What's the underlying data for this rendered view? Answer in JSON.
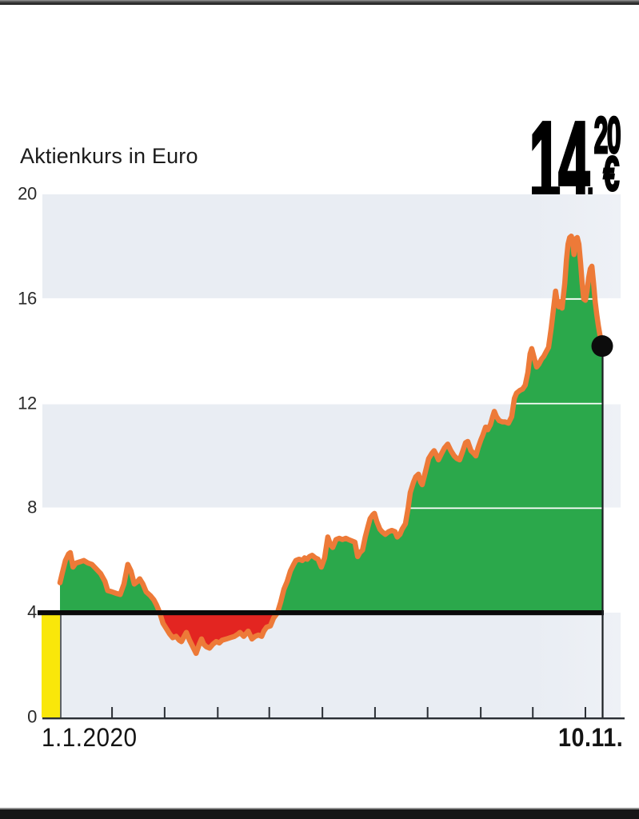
{
  "header": {
    "title": "Aktienkurs in Euro"
  },
  "price_tag": {
    "value": "14,20 €",
    "integer": "14",
    "comma": ",",
    "fraction": "20",
    "currency": "€"
  },
  "chart_data": {
    "type": "area",
    "title": "Aktienkurs in Euro",
    "ylabel": "Euro",
    "x_start_label": "1.1.2020",
    "x_end_label": "10.11.",
    "ylim": [
      0,
      20
    ],
    "yticks": [
      20,
      16,
      12,
      8,
      4,
      0
    ],
    "baseline": 4,
    "last_value": 14.2,
    "grid": "alternating bands at 0-4, 8-12, 16-20 plus white lines at 8/12/16, heavy black line at 4",
    "legend_position": "none",
    "bands": [
      [
        16,
        20
      ],
      [
        8,
        12
      ],
      [
        0,
        4
      ]
    ],
    "xtick_positions": [
      0.096,
      0.193,
      0.291,
      0.386,
      0.484,
      0.581,
      0.678,
      0.776,
      0.872,
      0.969
    ],
    "colors": {
      "area_positive": "#2ba84b",
      "area_negative": "#e32521",
      "line": "#ed7a38",
      "baseline_line": "#0a0a0a",
      "band": "#e9edf3",
      "highlight_bar": "#f9e70a",
      "marker": "#0c0c0c",
      "axis": "#2a2e34"
    },
    "series": [
      [
        0,
        5.15
      ],
      [
        0.004,
        5.5
      ],
      [
        0.01,
        6.0
      ],
      [
        0.016,
        6.25
      ],
      [
        0.019,
        6.3
      ],
      [
        0.024,
        5.75
      ],
      [
        0.029,
        5.9
      ],
      [
        0.037,
        5.95
      ],
      [
        0.044,
        6.0
      ],
      [
        0.052,
        5.9
      ],
      [
        0.059,
        5.85
      ],
      [
        0.066,
        5.7
      ],
      [
        0.075,
        5.5
      ],
      [
        0.083,
        5.2
      ],
      [
        0.088,
        4.85
      ],
      [
        0.096,
        4.8
      ],
      [
        0.103,
        4.75
      ],
      [
        0.111,
        4.7
      ],
      [
        0.118,
        5.1
      ],
      [
        0.125,
        5.85
      ],
      [
        0.131,
        5.6
      ],
      [
        0.137,
        5.1
      ],
      [
        0.143,
        5.2
      ],
      [
        0.147,
        5.3
      ],
      [
        0.153,
        5.1
      ],
      [
        0.159,
        4.8
      ],
      [
        0.167,
        4.65
      ],
      [
        0.173,
        4.5
      ],
      [
        0.178,
        4.3
      ],
      [
        0.184,
        4.0
      ],
      [
        0.19,
        3.6
      ],
      [
        0.196,
        3.4
      ],
      [
        0.202,
        3.2
      ],
      [
        0.208,
        3.05
      ],
      [
        0.214,
        3.1
      ],
      [
        0.22,
        2.95
      ],
      [
        0.224,
        2.9
      ],
      [
        0.229,
        3.1
      ],
      [
        0.233,
        3.25
      ],
      [
        0.239,
        2.95
      ],
      [
        0.245,
        2.7
      ],
      [
        0.251,
        2.45
      ],
      [
        0.257,
        2.8
      ],
      [
        0.261,
        3.0
      ],
      [
        0.265,
        2.8
      ],
      [
        0.27,
        2.7
      ],
      [
        0.276,
        2.65
      ],
      [
        0.282,
        2.8
      ],
      [
        0.288,
        2.9
      ],
      [
        0.294,
        2.85
      ],
      [
        0.299,
        2.95
      ],
      [
        0.307,
        3.0
      ],
      [
        0.314,
        3.05
      ],
      [
        0.322,
        3.1
      ],
      [
        0.329,
        3.2
      ],
      [
        0.332,
        3.25
      ],
      [
        0.339,
        3.1
      ],
      [
        0.347,
        3.3
      ],
      [
        0.354,
        3.0
      ],
      [
        0.36,
        3.1
      ],
      [
        0.366,
        3.15
      ],
      [
        0.372,
        3.1
      ],
      [
        0.376,
        3.3
      ],
      [
        0.381,
        3.45
      ],
      [
        0.388,
        3.5
      ],
      [
        0.394,
        3.8
      ],
      [
        0.401,
        4.0
      ],
      [
        0.407,
        4.4
      ],
      [
        0.413,
        4.9
      ],
      [
        0.419,
        5.2
      ],
      [
        0.425,
        5.6
      ],
      [
        0.431,
        5.85
      ],
      [
        0.435,
        6.0
      ],
      [
        0.441,
        6.05
      ],
      [
        0.447,
        6.0
      ],
      [
        0.451,
        6.1
      ],
      [
        0.456,
        6.05
      ],
      [
        0.46,
        6.15
      ],
      [
        0.465,
        6.2
      ],
      [
        0.471,
        6.1
      ],
      [
        0.476,
        6.05
      ],
      [
        0.482,
        5.75
      ],
      [
        0.488,
        6.1
      ],
      [
        0.494,
        6.9
      ],
      [
        0.499,
        6.6
      ],
      [
        0.503,
        6.5
      ],
      [
        0.509,
        6.8
      ],
      [
        0.515,
        6.85
      ],
      [
        0.521,
        6.8
      ],
      [
        0.527,
        6.85
      ],
      [
        0.532,
        6.8
      ],
      [
        0.538,
        6.75
      ],
      [
        0.544,
        6.7
      ],
      [
        0.549,
        6.15
      ],
      [
        0.553,
        6.3
      ],
      [
        0.558,
        6.4
      ],
      [
        0.563,
        6.9
      ],
      [
        0.568,
        7.3
      ],
      [
        0.572,
        7.6
      ],
      [
        0.577,
        7.75
      ],
      [
        0.58,
        7.8
      ],
      [
        0.584,
        7.5
      ],
      [
        0.59,
        7.2
      ],
      [
        0.594,
        7.1
      ],
      [
        0.6,
        7.0
      ],
      [
        0.606,
        7.1
      ],
      [
        0.612,
        7.15
      ],
      [
        0.618,
        7.1
      ],
      [
        0.622,
        6.9
      ],
      [
        0.627,
        7.0
      ],
      [
        0.631,
        7.2
      ],
      [
        0.637,
        7.4
      ],
      [
        0.642,
        8.0
      ],
      [
        0.646,
        8.6
      ],
      [
        0.652,
        9.0
      ],
      [
        0.656,
        9.2
      ],
      [
        0.661,
        9.3
      ],
      [
        0.665,
        9.0
      ],
      [
        0.668,
        8.9
      ],
      [
        0.674,
        9.4
      ],
      [
        0.68,
        9.9
      ],
      [
        0.686,
        10.1
      ],
      [
        0.69,
        10.2
      ],
      [
        0.695,
        10.0
      ],
      [
        0.698,
        9.85
      ],
      [
        0.704,
        10.1
      ],
      [
        0.709,
        10.3
      ],
      [
        0.715,
        10.45
      ],
      [
        0.721,
        10.2
      ],
      [
        0.727,
        10.0
      ],
      [
        0.732,
        9.9
      ],
      [
        0.737,
        9.85
      ],
      [
        0.743,
        10.2
      ],
      [
        0.748,
        10.5
      ],
      [
        0.752,
        10.55
      ],
      [
        0.758,
        10.2
      ],
      [
        0.763,
        10.1
      ],
      [
        0.767,
        10.0
      ],
      [
        0.771,
        10.3
      ],
      [
        0.776,
        10.6
      ],
      [
        0.78,
        10.8
      ],
      [
        0.785,
        11.1
      ],
      [
        0.789,
        11.0
      ],
      [
        0.794,
        11.2
      ],
      [
        0.798,
        11.5
      ],
      [
        0.801,
        11.7
      ],
      [
        0.805,
        11.5
      ],
      [
        0.81,
        11.35
      ],
      [
        0.816,
        11.3
      ],
      [
        0.821,
        11.3
      ],
      [
        0.827,
        11.25
      ],
      [
        0.833,
        11.5
      ],
      [
        0.838,
        12.2
      ],
      [
        0.842,
        12.4
      ],
      [
        0.848,
        12.5
      ],
      [
        0.853,
        12.55
      ],
      [
        0.858,
        12.7
      ],
      [
        0.863,
        13.2
      ],
      [
        0.867,
        13.9
      ],
      [
        0.87,
        14.1
      ],
      [
        0.875,
        13.7
      ],
      [
        0.879,
        13.4
      ],
      [
        0.883,
        13.5
      ],
      [
        0.888,
        13.7
      ],
      [
        0.892,
        13.8
      ],
      [
        0.897,
        14.0
      ],
      [
        0.901,
        14.15
      ],
      [
        0.906,
        14.9
      ],
      [
        0.91,
        15.6
      ],
      [
        0.914,
        16.3
      ],
      [
        0.917,
        15.9
      ],
      [
        0.92,
        15.7
      ],
      [
        0.923,
        15.9
      ],
      [
        0.926,
        15.65
      ],
      [
        0.931,
        16.6
      ],
      [
        0.934,
        17.5
      ],
      [
        0.937,
        18.1
      ],
      [
        0.94,
        18.35
      ],
      [
        0.943,
        18.4
      ],
      [
        0.946,
        18.1
      ],
      [
        0.948,
        17.7
      ],
      [
        0.951,
        18.3
      ],
      [
        0.954,
        18.35
      ],
      [
        0.957,
        18.1
      ],
      [
        0.96,
        17.4
      ],
      [
        0.963,
        16.6
      ],
      [
        0.966,
        16.0
      ],
      [
        0.969,
        15.95
      ],
      [
        0.972,
        16.3
      ],
      [
        0.975,
        16.8
      ],
      [
        0.978,
        17.15
      ],
      [
        0.981,
        17.25
      ],
      [
        0.984,
        16.6
      ],
      [
        0.987,
        15.9
      ],
      [
        0.99,
        15.4
      ],
      [
        0.993,
        14.95
      ],
      [
        0.996,
        14.6
      ],
      [
        1,
        14.2
      ]
    ]
  }
}
